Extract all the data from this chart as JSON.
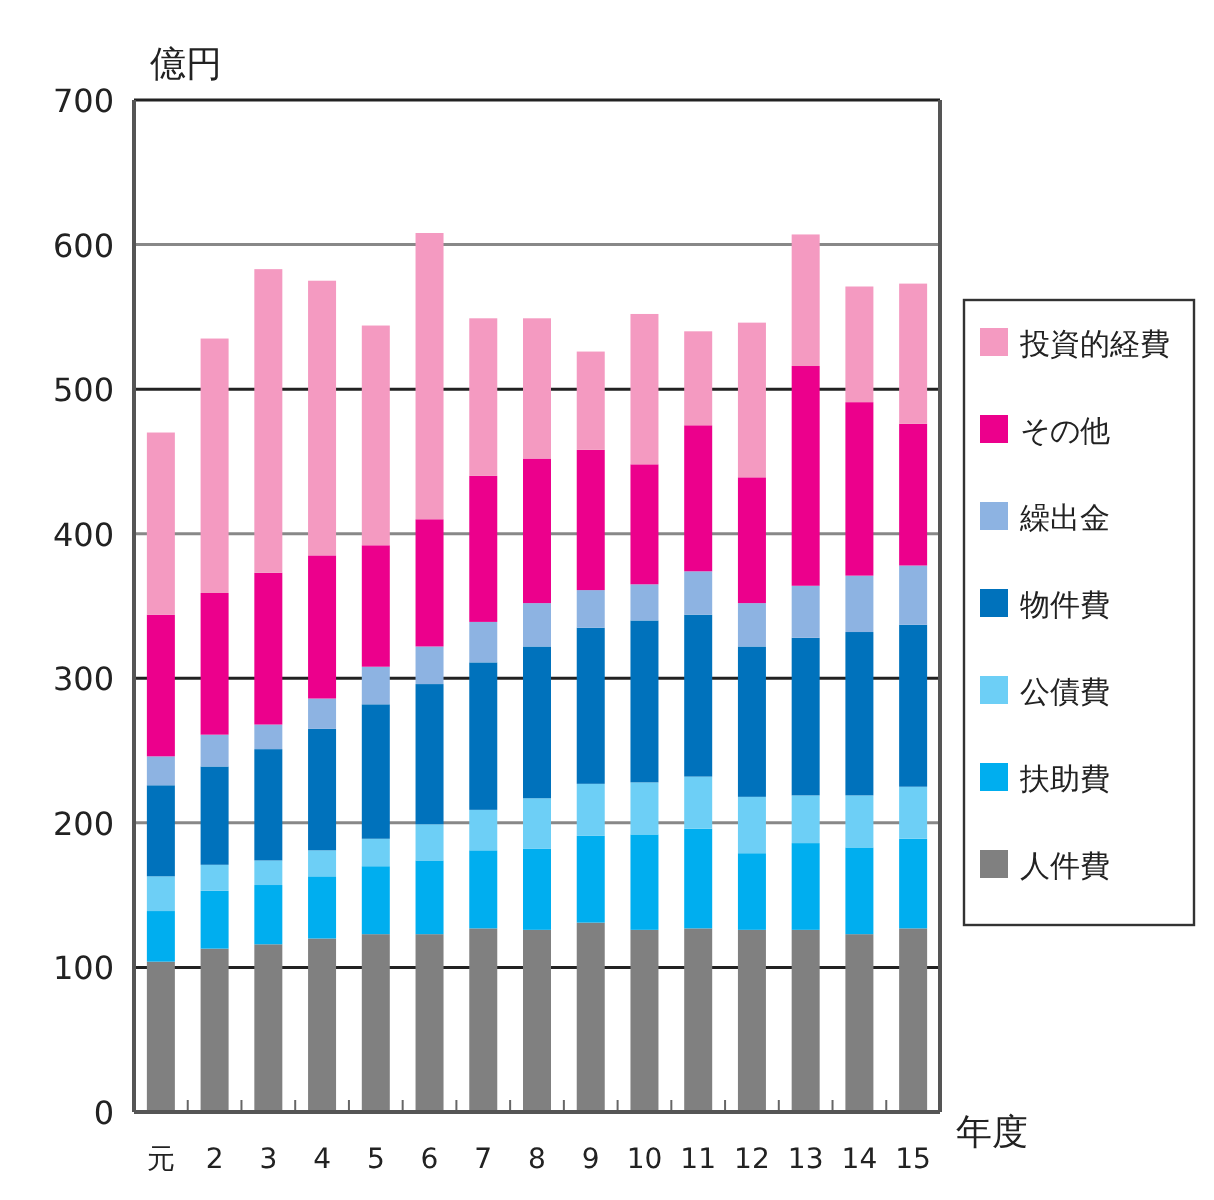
{
  "chart_data": {
    "type": "bar",
    "stacked": true,
    "ylabel": "億円",
    "xlabel": "年度",
    "categories": [
      "元",
      "2",
      "3",
      "4",
      "5",
      "6",
      "7",
      "8",
      "9",
      "10",
      "11",
      "12",
      "13",
      "14",
      "15"
    ],
    "series": [
      {
        "name": "人件費",
        "color": "#808080",
        "values": [
          104,
          113,
          116,
          120,
          123,
          123,
          127,
          126,
          131,
          126,
          127,
          126,
          126,
          123,
          127
        ]
      },
      {
        "name": "扶助費",
        "color": "#00aeef",
        "values": [
          35,
          40,
          41,
          43,
          47,
          51,
          54,
          56,
          60,
          66,
          69,
          53,
          60,
          60,
          62
        ]
      },
      {
        "name": "公債費",
        "color": "#6dcff6",
        "values": [
          24,
          18,
          17,
          18,
          19,
          25,
          28,
          35,
          36,
          36,
          36,
          39,
          33,
          36,
          36
        ]
      },
      {
        "name": "物件費",
        "color": "#0072bc",
        "values": [
          63,
          68,
          77,
          84,
          93,
          97,
          102,
          105,
          108,
          112,
          112,
          104,
          109,
          113,
          112
        ]
      },
      {
        "name": "繰出金",
        "color": "#8db3e2",
        "values": [
          20,
          22,
          17,
          21,
          26,
          26,
          28,
          30,
          26,
          25,
          30,
          30,
          36,
          39,
          41
        ]
      },
      {
        "name": "その他",
        "color": "#ec008c",
        "values": [
          98,
          98,
          105,
          99,
          84,
          88,
          101,
          100,
          97,
          83,
          101,
          87,
          152,
          120,
          98
        ]
      },
      {
        "name": "投資的経費",
        "color": "#f49ac1",
        "values": [
          126,
          176,
          210,
          190,
          152,
          198,
          109,
          97,
          68,
          104,
          65,
          107,
          91,
          80,
          97
        ]
      }
    ],
    "ylim": [
      0,
      700
    ],
    "yticks": [
      0,
      100,
      200,
      300,
      400,
      500,
      600,
      700
    ],
    "grid": "y",
    "legend": "right"
  }
}
